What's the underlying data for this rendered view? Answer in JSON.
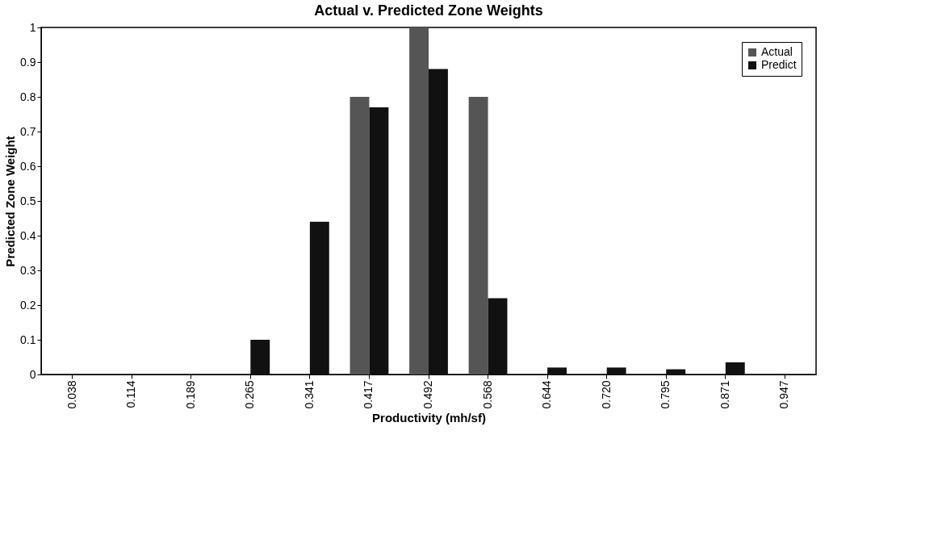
{
  "chart_data": {
    "type": "bar",
    "title": "Actual v. Predicted Zone Weights",
    "xlabel": "Productivity (mh/sf)",
    "ylabel": "Predicted Zone Weight",
    "categories": [
      "0.038",
      "0.114",
      "0.189",
      "0.265",
      "0.341",
      "0.417",
      "0.492",
      "0.568",
      "0.644",
      "0.720",
      "0.795",
      "0.871",
      "0.947"
    ],
    "series": [
      {
        "name": "Actual",
        "color": "#555555",
        "values": [
          0,
          0,
          0,
          0,
          0,
          0.8,
          1.0,
          0.8,
          0,
          0,
          0,
          0,
          0
        ]
      },
      {
        "name": "Predict",
        "color": "#111111",
        "values": [
          0,
          0,
          0,
          0.1,
          0.44,
          0.77,
          0.88,
          0.22,
          0.02,
          0.02,
          0.015,
          0.035,
          0
        ]
      }
    ],
    "ylim": [
      0,
      1
    ],
    "yticks": [
      0,
      0.1,
      0.2,
      0.3,
      0.4,
      0.5,
      0.6,
      0.7,
      0.8,
      0.9,
      1
    ],
    "grid": false,
    "legend": "top right"
  }
}
